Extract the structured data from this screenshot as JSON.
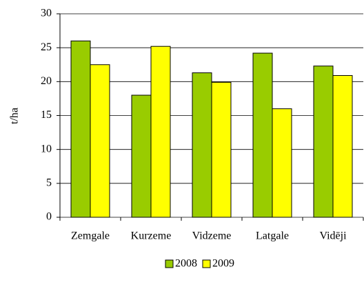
{
  "chart_data": {
    "type": "bar",
    "y_label": "t/ha",
    "categories": [
      "Zemgale",
      "Kurzeme",
      "Vidzeme",
      "Latgale",
      "Vidēji"
    ],
    "series": [
      {
        "name": "2008",
        "color": "#99cc00",
        "values": [
          26,
          18,
          21.3,
          24.2,
          22.3
        ]
      },
      {
        "name": "2009",
        "color": "#ffff00",
        "values": [
          22.5,
          25.2,
          19.9,
          16,
          20.9
        ]
      }
    ],
    "ylim": [
      0,
      30
    ],
    "yticks": [
      0,
      5,
      10,
      15,
      20,
      25,
      30
    ],
    "grid": true,
    "legend": "bottom"
  }
}
